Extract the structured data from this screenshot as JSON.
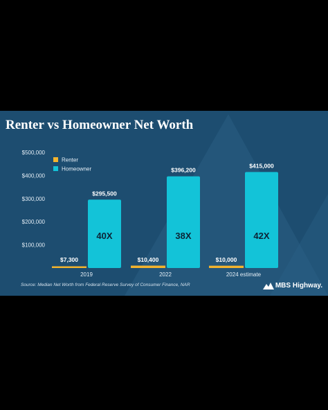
{
  "slide": {
    "title": "Renter vs Homeowner Net Worth",
    "source": "Source: Median Net Worth from Federal Reserve Survey of Consumer Finance, NAR",
    "brand": "MBS Highway.",
    "brand_icon": "mbs-logo-icon"
  },
  "chart_data": {
    "type": "bar",
    "title": "Renter vs Homeowner Net Worth",
    "xlabel": "",
    "ylabel": "",
    "categories": [
      "2019",
      "2022",
      "2024 estimate"
    ],
    "ylim": [
      0,
      500000
    ],
    "yticks": [
      100000,
      200000,
      300000,
      400000,
      500000
    ],
    "ytick_labels": [
      "$100,000",
      "$200,000",
      "$300,000",
      "$400,000",
      "$500,000"
    ],
    "grid": false,
    "legend_position": "top-left",
    "series": [
      {
        "name": "Renter",
        "color": "#f3b42e",
        "values": [
          7300,
          10400,
          10000
        ],
        "labels": [
          "$7,300",
          "$10,400",
          "$10,000"
        ]
      },
      {
        "name": "Homeowner",
        "color": "#13c3d8",
        "values": [
          295500,
          396200,
          415000
        ],
        "labels": [
          "$295,500",
          "$396,200",
          "$415,000"
        ]
      }
    ],
    "annotations": [
      "40X",
      "38X",
      "42X"
    ]
  }
}
